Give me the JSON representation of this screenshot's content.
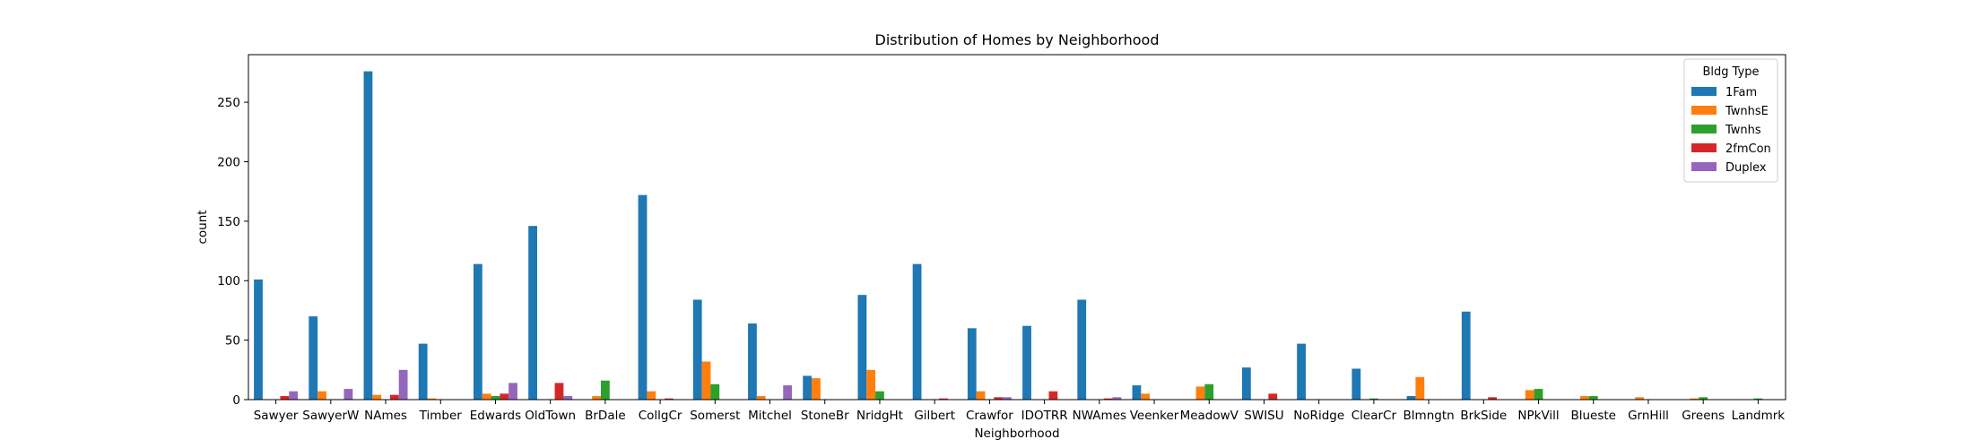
{
  "chart_data": {
    "type": "bar",
    "title": "Distribution of Homes by Neighborhood",
    "xlabel": "Neighborhood",
    "ylabel": "count",
    "ylim": [
      0,
      290
    ],
    "yticks": [
      0,
      50,
      100,
      150,
      200,
      250
    ],
    "grid": false,
    "legend": {
      "title": "Bldg Type",
      "placement": "top-right"
    },
    "categories": [
      "Sawyer",
      "SawyerW",
      "NAmes",
      "Timber",
      "Edwards",
      "OldTown",
      "BrDale",
      "CollgCr",
      "Somerst",
      "Mitchel",
      "StoneBr",
      "NridgHt",
      "Gilbert",
      "Crawfor",
      "IDOTRR",
      "NWAmes",
      "Veenker",
      "MeadowV",
      "SWISU",
      "NoRidge",
      "ClearCr",
      "Blmngtn",
      "BrkSide",
      "NPkVill",
      "Blueste",
      "GrnHill",
      "Greens",
      "Landmrk"
    ],
    "series": [
      {
        "name": "1Fam",
        "color": "#1f77b4",
        "values": [
          101,
          70,
          276,
          47,
          114,
          146,
          0,
          172,
          84,
          64,
          20,
          88,
          114,
          60,
          62,
          84,
          12,
          0,
          27,
          47,
          26,
          3,
          74,
          0,
          0,
          0,
          0,
          0
        ]
      },
      {
        "name": "TwnhsE",
        "color": "#ff7f0e",
        "values": [
          0,
          7,
          4,
          1,
          5,
          0,
          3,
          7,
          32,
          3,
          18,
          25,
          0,
          7,
          0,
          0,
          5,
          11,
          0,
          0,
          0,
          19,
          0,
          8,
          3,
          2,
          1,
          0
        ]
      },
      {
        "name": "Twnhs",
        "color": "#2ca02c",
        "values": [
          0,
          0,
          0,
          0,
          3,
          0,
          16,
          0,
          13,
          0,
          0,
          7,
          0,
          0,
          0,
          0,
          0,
          13,
          0,
          0,
          1,
          0,
          0,
          9,
          3,
          0,
          2,
          1
        ]
      },
      {
        "name": "2fmCon",
        "color": "#d62728",
        "values": [
          3,
          0,
          4,
          0,
          5,
          14,
          0,
          1,
          0,
          0,
          0,
          0,
          1,
          2,
          7,
          1,
          0,
          0,
          5,
          0,
          0,
          0,
          2,
          0,
          0,
          0,
          0,
          0
        ]
      },
      {
        "name": "Duplex",
        "color": "#9467bd",
        "values": [
          7,
          9,
          25,
          0,
          14,
          3,
          0,
          0,
          0,
          12,
          0,
          0,
          0,
          2,
          0,
          2,
          0,
          0,
          0,
          0,
          0,
          0,
          0,
          0,
          0,
          0,
          0,
          0
        ]
      }
    ]
  }
}
